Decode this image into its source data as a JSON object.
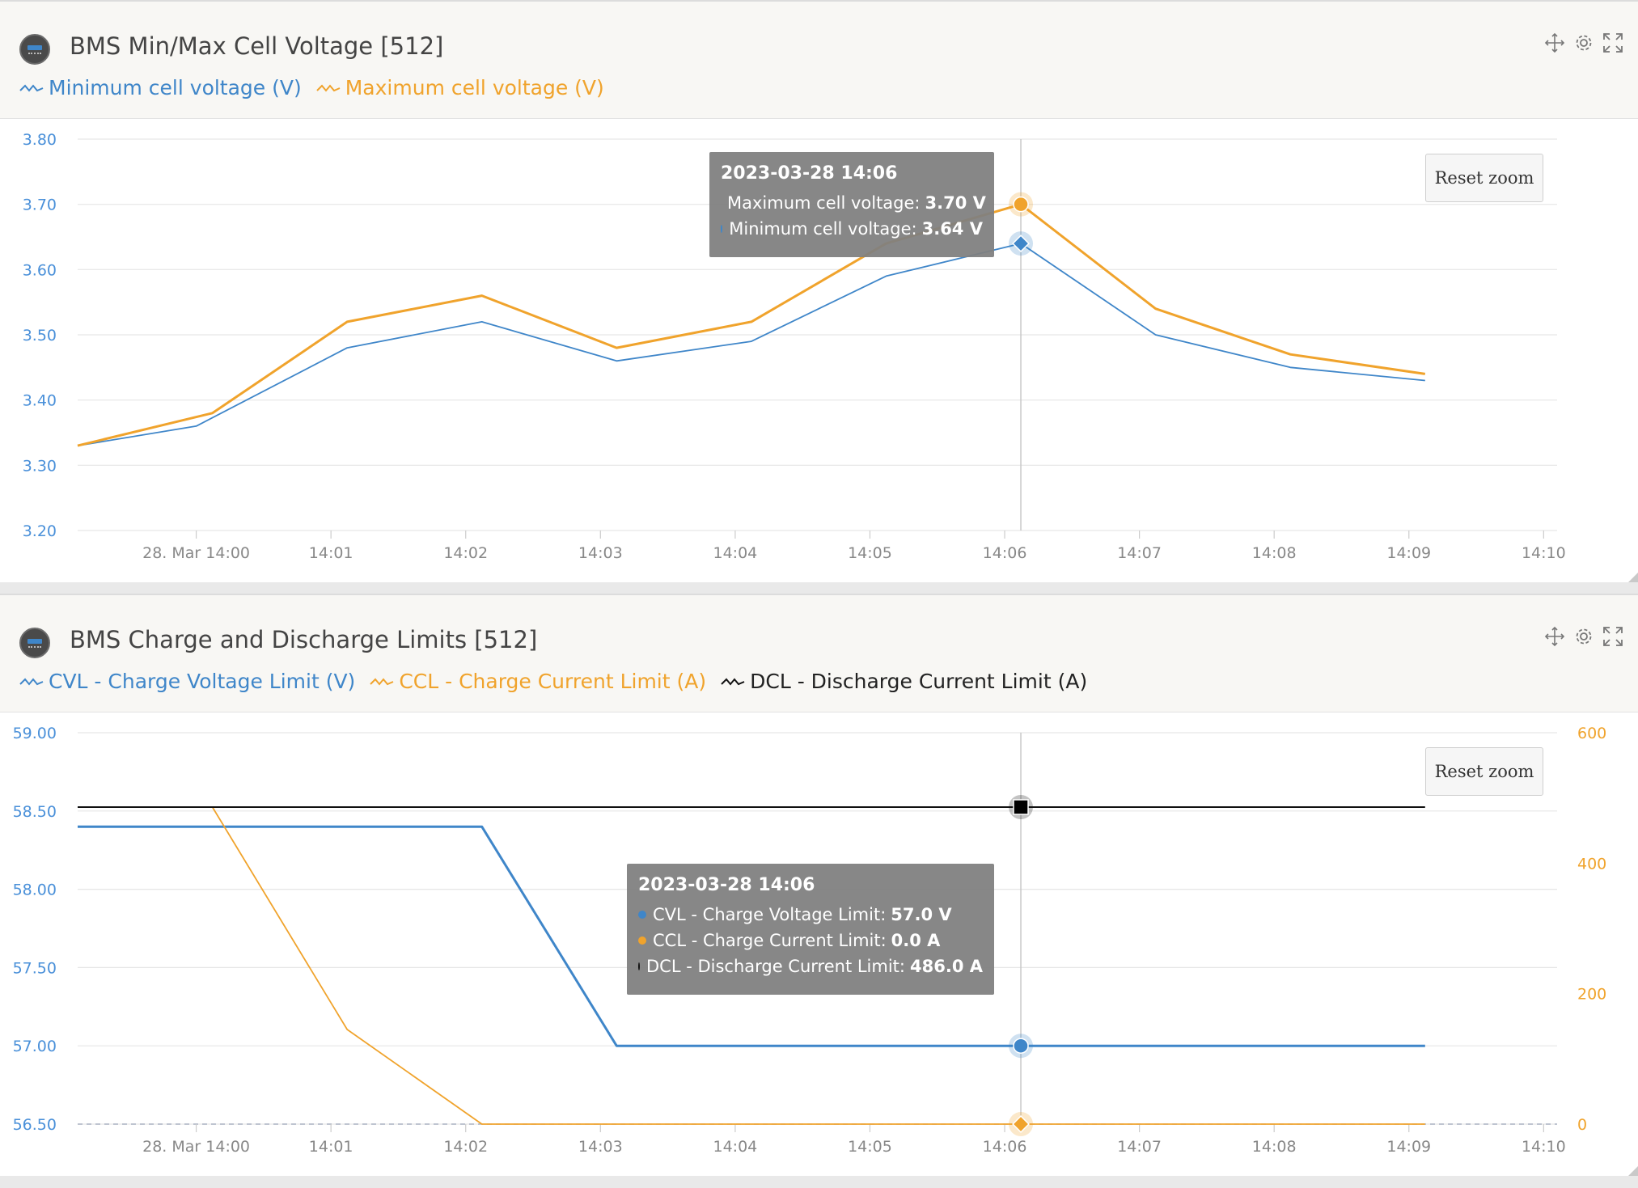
{
  "panels": [
    {
      "title": "BMS Min/Max Cell Voltage [512]",
      "legend": [
        {
          "label": "Minimum cell voltage (V)",
          "color": "#3f86c9"
        },
        {
          "label": "Maximum cell voltage (V)",
          "color": "#f0a32c"
        }
      ],
      "reset_zoom_label": "Reset zoom",
      "tooltip": {
        "title": "2023-03-28 14:06",
        "rows": [
          {
            "label": "Maximum cell voltage",
            "value": "3.70 V",
            "color": "#f0a32c"
          },
          {
            "label": "Minimum cell voltage",
            "value": "3.64 V",
            "color": "#3f86c9"
          }
        ]
      }
    },
    {
      "title": "BMS Charge and Discharge Limits [512]",
      "legend": [
        {
          "label": "CVL - Charge Voltage Limit (V)",
          "color": "#3f86c9"
        },
        {
          "label": "CCL - Charge Current Limit (A)",
          "color": "#f0a32c"
        },
        {
          "label": "DCL - Discharge Current Limit (A)",
          "color": "#111111"
        }
      ],
      "reset_zoom_label": "Reset zoom",
      "tooltip": {
        "title": "2023-03-28 14:06",
        "rows": [
          {
            "label": "CVL - Charge Voltage Limit",
            "value": "57.0 V",
            "color": "#3f86c9"
          },
          {
            "label": "CCL - Charge Current Limit",
            "value": "0.0 A",
            "color": "#f0a32c"
          },
          {
            "label": "DCL - Discharge Current Limit",
            "value": "486.0 A",
            "color": "#111111"
          }
        ]
      }
    }
  ],
  "chart_data": [
    {
      "type": "line",
      "title": "BMS Min/Max Cell Voltage [512]",
      "x_ticks": [
        "28. Mar 14:00",
        "14:01",
        "14:02",
        "14:03",
        "14:04",
        "14:05",
        "14:06",
        "14:07",
        "14:08",
        "14:09",
        "14:10"
      ],
      "x_range_min": [
        -0.88,
        10.1
      ],
      "y_ticks": [
        "3.20",
        "3.30",
        "3.40",
        "3.50",
        "3.60",
        "3.70",
        "3.80"
      ],
      "ylim": [
        3.2,
        3.8
      ],
      "grid": true,
      "highlight_x_min": 6.12,
      "series": [
        {
          "name": "Minimum cell voltage (V)",
          "color": "#3f86c9",
          "axis": "left",
          "x_min": [
            -0.88,
            -0.0,
            1.12,
            2.12,
            3.12,
            4.12,
            5.12,
            6.12,
            7.12,
            8.12,
            9.12
          ],
          "values": [
            3.33,
            3.36,
            3.48,
            3.52,
            3.46,
            3.49,
            3.59,
            3.64,
            3.5,
            3.45,
            3.43
          ]
        },
        {
          "name": "Maximum cell voltage (V)",
          "color": "#f0a32c",
          "axis": "left",
          "x_min": [
            -0.88,
            0.12,
            1.12,
            2.12,
            3.12,
            4.12,
            5.12,
            6.12,
            7.12,
            8.12,
            9.12
          ],
          "values": [
            3.33,
            3.38,
            3.52,
            3.56,
            3.48,
            3.52,
            3.64,
            3.7,
            3.54,
            3.47,
            3.44
          ]
        }
      ]
    },
    {
      "type": "line",
      "title": "BMS Charge and Discharge Limits [512]",
      "x_ticks": [
        "28. Mar 14:00",
        "14:01",
        "14:02",
        "14:03",
        "14:04",
        "14:05",
        "14:06",
        "14:07",
        "14:08",
        "14:09",
        "14:10"
      ],
      "x_range_min": [
        -0.88,
        10.1
      ],
      "y_ticks": [
        "56.50",
        "57.00",
        "57.50",
        "58.00",
        "58.50",
        "59.00"
      ],
      "ylim": [
        56.5,
        59.0
      ],
      "y2_ticks": [
        "0",
        "200",
        "400",
        "600"
      ],
      "y2lim": [
        0,
        600
      ],
      "grid": true,
      "highlight_x_min": 6.12,
      "series": [
        {
          "name": "CVL - Charge Voltage Limit (V)",
          "color": "#3f86c9",
          "axis": "left",
          "x_min": [
            -0.88,
            2.12,
            3.12,
            9.12
          ],
          "values": [
            58.4,
            58.4,
            57.0,
            57.0
          ]
        },
        {
          "name": "CCL - Charge Current Limit (A)",
          "color": "#f0a32c",
          "axis": "right",
          "x_min": [
            0.12,
            1.12,
            2.12,
            9.12
          ],
          "values": [
            486.0,
            145.0,
            0.0,
            0.0
          ]
        },
        {
          "name": "DCL - Discharge Current Limit (A)",
          "color": "#111111",
          "axis": "right",
          "x_min": [
            -0.88,
            9.12
          ],
          "values": [
            486.0,
            486.0
          ]
        }
      ]
    }
  ]
}
